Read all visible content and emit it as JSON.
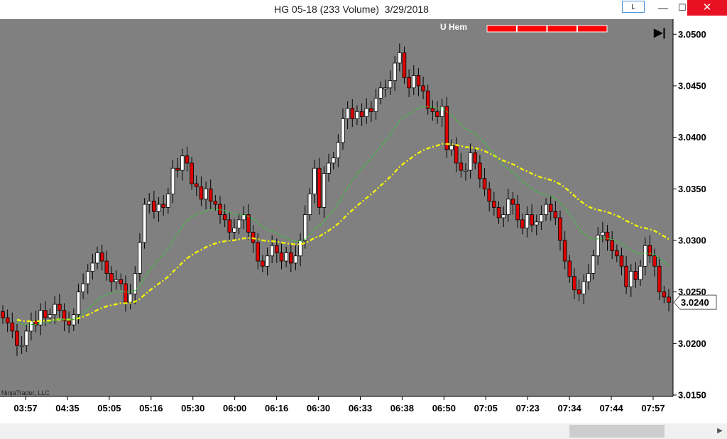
{
  "window": {
    "title": "HG 05-18 (233 Volume)  3/29/2018",
    "l_button": "L",
    "minimize_glyph": "—",
    "maximize_glyph": "☐",
    "close_glyph": "✕"
  },
  "overlay": {
    "indicator_label": "U Hem",
    "indicator_color": "#ff0000",
    "indicator_segments": 4,
    "play_glyph": "▶|",
    "watermark": "NinjaTrader, LLC"
  },
  "colors": {
    "plot_bg": "#808080",
    "axis_bg": "#ffffff",
    "up_candle": "#ffffff",
    "down_candle": "#e00000",
    "wick": "#000000",
    "fast_ma": "#33cc33",
    "slow_ma": "#f2f20d"
  },
  "chart_data": {
    "type": "candlestick",
    "title": "",
    "x_tick_labels": [
      "03:57",
      "04:35",
      "05:05",
      "05:16",
      "05:30",
      "06:00",
      "06:16",
      "06:30",
      "06:33",
      "06:38",
      "06:50",
      "07:05",
      "07:23",
      "07:34",
      "07:44",
      "07:57"
    ],
    "y_tick_labels": [
      "3.0500",
      "3.0450",
      "3.0400",
      "3.0350",
      "3.0300",
      "3.0250",
      "3.0200",
      "3.0150"
    ],
    "ylim": [
      3.015,
      3.0505
    ],
    "grid": false,
    "last_price": 3.024,
    "last_price_label": "3.0240",
    "candle_closes": [
      3.0225,
      3.022,
      3.0212,
      3.0198,
      3.0198,
      3.0212,
      3.0222,
      3.0218,
      3.0232,
      3.0225,
      3.0228,
      3.0238,
      3.0232,
      3.0222,
      3.0218,
      3.0228,
      3.025,
      3.0258,
      3.027,
      3.0278,
      3.0288,
      3.028,
      3.0268,
      3.026,
      3.0262,
      3.0258,
      3.024,
      3.0248,
      3.0268,
      3.0298,
      3.0335,
      3.0338,
      3.0328,
      3.0335,
      3.0332,
      3.0345,
      3.037,
      3.0368,
      3.0382,
      3.0375,
      3.0355,
      3.0352,
      3.034,
      3.035,
      3.0338,
      3.0335,
      3.0325,
      3.032,
      3.0308,
      3.0312,
      3.032,
      3.0325,
      3.0308,
      3.0298,
      3.028,
      3.0275,
      3.0285,
      3.0295,
      3.0288,
      3.028,
      3.0288,
      3.0278,
      3.0285,
      3.03,
      3.0325,
      3.0345,
      3.037,
      3.0332,
      3.0365,
      3.0375,
      3.038,
      3.0395,
      3.0418,
      3.0428,
      3.0418,
      3.0425,
      3.042,
      3.0428,
      3.0425,
      3.0438,
      3.0448,
      3.0448,
      3.0455,
      3.0472,
      3.0482,
      3.0458,
      3.0448,
      3.046,
      3.045,
      3.0445,
      3.0428,
      3.0425,
      3.042,
      3.043,
      3.0388,
      3.0392,
      3.0375,
      3.0368,
      3.0368,
      3.0385,
      3.0375,
      3.036,
      3.035,
      3.0338,
      3.0332,
      3.0322,
      3.0325,
      3.034,
      3.0335,
      3.032,
      3.0312,
      3.0325,
      3.0315,
      3.0318,
      3.0325,
      3.0335,
      3.0328,
      3.0322,
      3.03,
      3.028,
      3.0265,
      3.0252,
      3.0248,
      3.026,
      3.0268,
      3.0285,
      3.0305,
      3.0308,
      3.03,
      3.029,
      3.0285,
      3.0275,
      3.0255,
      3.027,
      3.0262,
      3.0275,
      3.0295,
      3.0285,
      3.0275,
      3.025,
      3.0245,
      3.024
    ]
  }
}
